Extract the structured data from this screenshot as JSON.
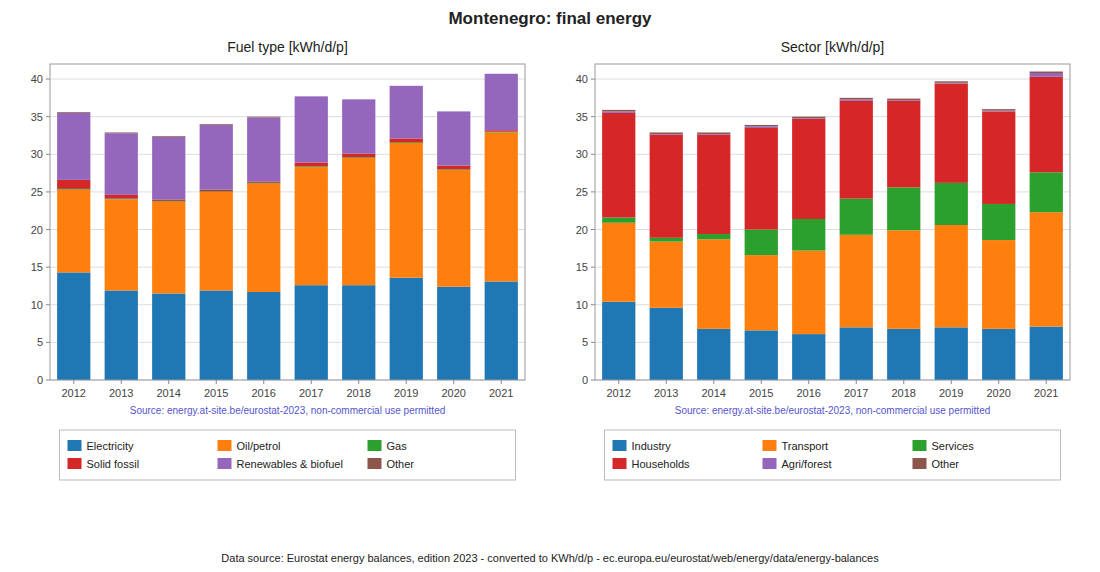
{
  "title": "Montenegro: final energy",
  "footer": "Data source: Eurostat energy balances, edition 2023 - converted to KWh/d/p - ec.europa.eu/eurostat/web/energy/data/energy-balances",
  "chart_data": [
    {
      "type": "bar",
      "stacked": true,
      "title": "Fuel type [kWh/d/p]",
      "categories": [
        "2012",
        "2013",
        "2014",
        "2015",
        "2016",
        "2017",
        "2018",
        "2019",
        "2020",
        "2021"
      ],
      "series": [
        {
          "name": "Electricity",
          "color": "#1f77b4",
          "values": [
            14.3,
            11.9,
            11.5,
            11.9,
            11.7,
            12.6,
            12.6,
            13.6,
            12.4,
            13.1
          ]
        },
        {
          "name": "Oil/petrol",
          "color": "#ff7f0e",
          "values": [
            11.0,
            12.1,
            12.2,
            13.1,
            14.4,
            15.7,
            16.9,
            17.9,
            15.5,
            19.8
          ]
        },
        {
          "name": "Gas",
          "color": "#2ca02c",
          "values": [
            0.1,
            0.1,
            0.1,
            0.1,
            0.1,
            0.1,
            0.1,
            0.1,
            0.1,
            0.1
          ]
        },
        {
          "name": "Solid fossil",
          "color": "#d62728",
          "values": [
            1.2,
            0.5,
            0.2,
            0.2,
            0.2,
            0.5,
            0.5,
            0.5,
            0.5,
            0.2
          ]
        },
        {
          "name": "Renewables & biofuel",
          "color": "#9467bd",
          "values": [
            8.9,
            8.2,
            8.3,
            8.6,
            8.5,
            8.8,
            7.2,
            7.0,
            7.2,
            7.5
          ]
        },
        {
          "name": "Other",
          "color": "#8c564b",
          "values": [
            0.1,
            0.1,
            0.1,
            0.1,
            0.1,
            0.0,
            0.0,
            0.0,
            0.0,
            0.0
          ]
        }
      ],
      "ylim": [
        0,
        42
      ],
      "yticks": [
        0,
        5,
        10,
        15,
        20,
        25,
        30,
        35,
        40
      ],
      "grid": true,
      "legend": "bottom",
      "annotations": [
        "Source: energy.at-site.be/eurostat-2023, non-commercial use permitted"
      ]
    },
    {
      "type": "bar",
      "stacked": true,
      "title": "Sector [kWh/d/p]",
      "categories": [
        "2012",
        "2013",
        "2014",
        "2015",
        "2016",
        "2017",
        "2018",
        "2019",
        "2020",
        "2021"
      ],
      "series": [
        {
          "name": "Industry",
          "color": "#1f77b4",
          "values": [
            10.4,
            9.6,
            6.8,
            6.6,
            6.1,
            7.0,
            6.8,
            7.0,
            6.8,
            7.1
          ]
        },
        {
          "name": "Transport",
          "color": "#ff7f0e",
          "values": [
            10.5,
            8.8,
            11.9,
            10.0,
            11.1,
            12.3,
            13.1,
            13.6,
            11.8,
            15.2
          ]
        },
        {
          "name": "Services",
          "color": "#2ca02c",
          "values": [
            0.7,
            0.5,
            0.7,
            3.4,
            4.2,
            4.8,
            5.7,
            5.6,
            4.8,
            5.3
          ]
        },
        {
          "name": "Households",
          "color": "#d62728",
          "values": [
            13.9,
            13.7,
            13.2,
            13.5,
            13.3,
            13.0,
            11.5,
            13.2,
            12.3,
            12.7
          ]
        },
        {
          "name": "Agri/forest",
          "color": "#9467bd",
          "values": [
            0.2,
            0.1,
            0.1,
            0.2,
            0.1,
            0.2,
            0.1,
            0.1,
            0.1,
            0.5
          ]
        },
        {
          "name": "Other",
          "color": "#8c564b",
          "values": [
            0.2,
            0.2,
            0.2,
            0.2,
            0.2,
            0.2,
            0.2,
            0.2,
            0.2,
            0.2
          ]
        }
      ],
      "ylim": [
        0,
        42
      ],
      "yticks": [
        0,
        5,
        10,
        15,
        20,
        25,
        30,
        35,
        40
      ],
      "grid": true,
      "legend": "bottom",
      "annotations": [
        "Source: energy.at-site.be/eurostat-2023, non-commercial use permitted"
      ]
    }
  ]
}
